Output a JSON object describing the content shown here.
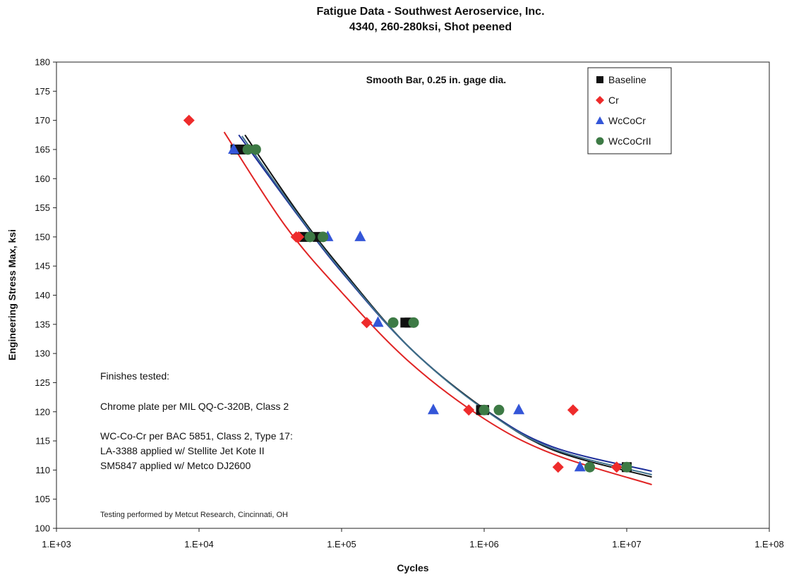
{
  "chart_data": {
    "type": "scatter",
    "title": "Fatigue Data - Southwest Aeroservice, Inc.",
    "subtitle": "4340, 260-280ksi, Shot peened",
    "xlabel": "Cycles",
    "ylabel": "Engineering Stress Max, ksi",
    "x_scale": "log",
    "xlim": [
      1000,
      100000000
    ],
    "ylim": [
      100,
      180
    ],
    "x_ticks": [
      1000,
      10000,
      100000,
      1000000,
      10000000,
      100000000
    ],
    "x_tick_labels": [
      "1.E+03",
      "1.E+04",
      "1.E+05",
      "1.E+06",
      "1.E+07",
      "1.E+08"
    ],
    "y_ticks": [
      100,
      105,
      110,
      115,
      120,
      125,
      130,
      135,
      140,
      145,
      150,
      155,
      160,
      165,
      170,
      175,
      180
    ],
    "y_tick_labels": [
      "100",
      "105",
      "110",
      "115",
      "120",
      "125",
      "130",
      "135",
      "140",
      "145",
      "150",
      "155",
      "160",
      "165",
      "170",
      "175",
      "180"
    ],
    "grid": false,
    "legend": "top-right",
    "series": [
      {
        "name": "Baseline",
        "marker": "square",
        "color": "#111111",
        "points": [
          [
            18000,
            165
          ],
          [
            20000,
            165
          ],
          [
            55000,
            150
          ],
          [
            68000,
            150
          ],
          [
            280000,
            135.3
          ],
          [
            300000,
            135.3
          ],
          [
            950000,
            120.3
          ],
          [
            1000000,
            120.3
          ],
          [
            10000000,
            110.5
          ]
        ]
      },
      {
        "name": "Cr",
        "marker": "diamond",
        "color": "#ee2b2b",
        "points": [
          [
            8500,
            170
          ],
          [
            48000,
            150
          ],
          [
            50000,
            150
          ],
          [
            150000,
            135.3
          ],
          [
            780000,
            120.3
          ],
          [
            4200000,
            120.3
          ],
          [
            3300000,
            110.5
          ],
          [
            8500000,
            110.5
          ]
        ]
      },
      {
        "name": "WcCoCr",
        "marker": "triangle",
        "color": "#3456d8",
        "points": [
          [
            17500,
            165
          ],
          [
            80000,
            150
          ],
          [
            135000,
            150
          ],
          [
            180000,
            135.3
          ],
          [
            440000,
            120.3
          ],
          [
            1750000,
            120.3
          ],
          [
            4700000,
            110.5
          ]
        ]
      },
      {
        "name": "WcCoCrII",
        "marker": "circle",
        "color": "#3d7a45",
        "points": [
          [
            22000,
            165
          ],
          [
            25000,
            165
          ],
          [
            60000,
            150
          ],
          [
            74000,
            150
          ],
          [
            230000,
            135.3
          ],
          [
            320000,
            135.3
          ],
          [
            1000000,
            120.3
          ],
          [
            1270000,
            120.3
          ],
          [
            5500000,
            110.5
          ],
          [
            10000000,
            110.5
          ]
        ]
      }
    ],
    "trendlines": [
      {
        "color": "#e02424",
        "points": [
          [
            15000,
            168
          ],
          [
            40000,
            152
          ],
          [
            100000,
            140.5
          ],
          [
            300000,
            128.5
          ],
          [
            1000000,
            118.8
          ],
          [
            3000000,
            112.8
          ],
          [
            15000000,
            107.5
          ]
        ]
      },
      {
        "color": "#1d2e9a",
        "points": [
          [
            19000,
            167.5
          ],
          [
            50000,
            153.5
          ],
          [
            100000,
            144
          ],
          [
            300000,
            131
          ],
          [
            1000000,
            120.5
          ],
          [
            3000000,
            114
          ],
          [
            15000000,
            109.8
          ]
        ]
      },
      {
        "color": "#111111",
        "points": [
          [
            21000,
            167.5
          ],
          [
            50000,
            154
          ],
          [
            100000,
            144.5
          ],
          [
            300000,
            131
          ],
          [
            1000000,
            120.5
          ],
          [
            3000000,
            113.5
          ],
          [
            15000000,
            108.8
          ]
        ]
      },
      {
        "color": "#3d6e8a",
        "points": [
          [
            20000,
            167.3
          ],
          [
            50000,
            153.7
          ],
          [
            100000,
            144.2
          ],
          [
            300000,
            131
          ],
          [
            1000000,
            120.4
          ],
          [
            3000000,
            113.7
          ],
          [
            15000000,
            109.2
          ]
        ]
      }
    ],
    "annotations": {
      "specimen": "Smooth Bar, 0.25 in. gage dia.",
      "finishes_heading": "Finishes tested:",
      "finish_lines": [
        "Chrome plate per MIL QQ-C-320B, Class 2",
        "WC-Co-Cr per BAC 5851, Class 2, Type 17:",
        "LA-3388 applied w/ Stellite Jet Kote II",
        "SM5847 applied w/ Metco DJ2600"
      ],
      "credit": "Testing performed by Metcut Research, Cincinnati, OH"
    }
  }
}
